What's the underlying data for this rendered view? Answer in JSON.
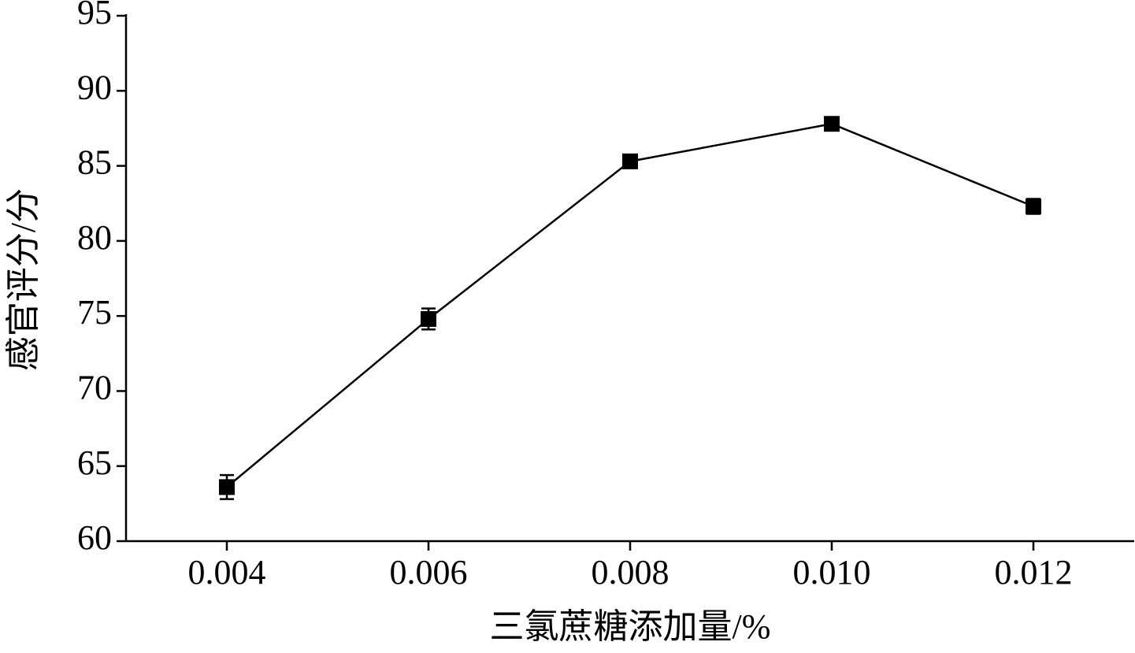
{
  "chart_data": {
    "type": "line",
    "xlabel": "三氯蔗糖添加量/%",
    "ylabel": "感官评分/分",
    "categories": [
      "0.004",
      "0.006",
      "0.008",
      "0.010",
      "0.012"
    ],
    "values": [
      63.6,
      74.8,
      85.3,
      87.8,
      82.3
    ],
    "errors": [
      0.8,
      0.7,
      0.3,
      0.4,
      0.5
    ],
    "color": "#000000",
    "ylim": [
      60,
      95
    ],
    "yticks": [
      60,
      65,
      70,
      75,
      80,
      85,
      90,
      95
    ],
    "grid": false
  }
}
